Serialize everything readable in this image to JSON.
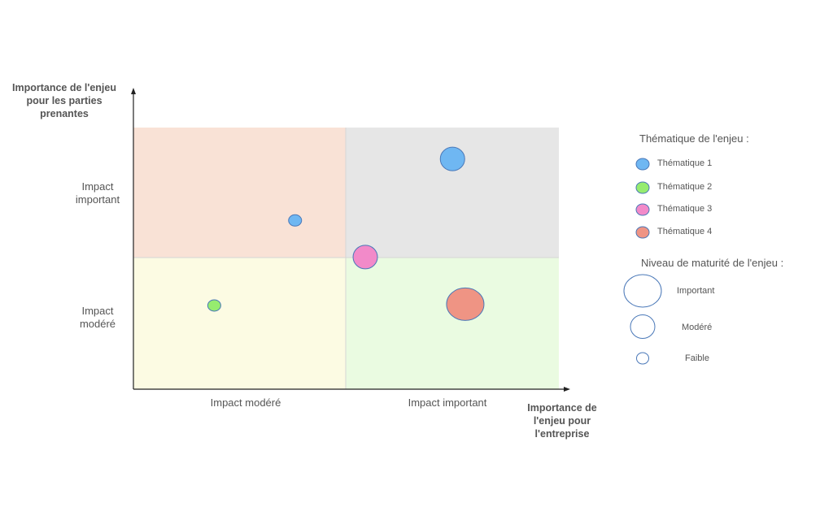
{
  "axes": {
    "y_title": [
      "Importance de l'enjeu",
      "pour les parties",
      "prenantes"
    ],
    "x_title": [
      "Importance de",
      "l'enjeu pour",
      "l'entreprise"
    ],
    "rows": [
      [
        "Impact",
        "important"
      ],
      [
        "Impact",
        "modéré"
      ]
    ],
    "columns": [
      "Impact modéré",
      "Impact important"
    ]
  },
  "quadrant_colors": {
    "top_left": "#f9e2d6",
    "top_right": "#e6e6e6",
    "bottom_left": "#fcfbe3",
    "bottom_right": "#eafbe1"
  },
  "legend": {
    "theme_title": "Thématique de l'enjeu :",
    "themes": [
      {
        "label": "Thématique 1",
        "color": "#6fb7f2"
      },
      {
        "label": "Thématique 2",
        "color": "#96ec6f"
      },
      {
        "label": "Thématique 3",
        "color": "#f28ac9"
      },
      {
        "label": "Thématique 4",
        "color": "#ef9484"
      }
    ],
    "maturity_title": "Niveau de maturité de l'enjeu :",
    "maturity_levels": [
      "Important",
      "Modéré",
      "Faible"
    ]
  },
  "chart_data": {
    "type": "scatter",
    "x_scale": [
      0,
      2
    ],
    "y_scale": [
      0,
      2
    ],
    "points": [
      {
        "x": 0.38,
        "y": 0.64,
        "theme": "Thématique 2",
        "maturity": "Faible"
      },
      {
        "x": 0.76,
        "y": 1.29,
        "theme": "Thématique 1",
        "maturity": "Faible"
      },
      {
        "x": 1.09,
        "y": 1.01,
        "theme": "Thématique 3",
        "maturity": "Modéré"
      },
      {
        "x": 1.5,
        "y": 1.76,
        "theme": "Thématique 1",
        "maturity": "Modéré"
      },
      {
        "x": 1.56,
        "y": 0.65,
        "theme": "Thématique 4",
        "maturity": "Important"
      }
    ]
  }
}
